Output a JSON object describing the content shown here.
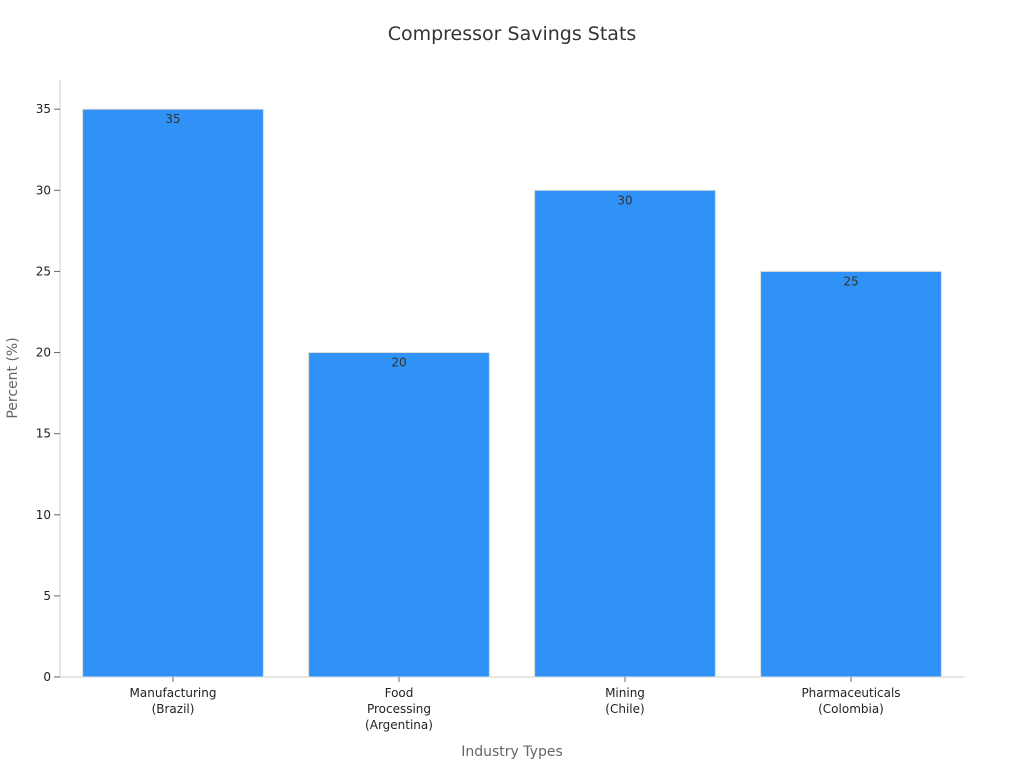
{
  "chart_data": {
    "type": "bar",
    "title": "Compressor Savings Stats",
    "xlabel": "Industry Types",
    "ylabel": "Percent (%)",
    "categories": [
      [
        "Manufacturing",
        "(Brazil)"
      ],
      [
        "Food",
        "Processing",
        "(Argentina)"
      ],
      [
        "Mining",
        "(Chile)"
      ],
      [
        "Pharmaceuticals",
        "(Colombia)"
      ]
    ],
    "values": [
      35,
      20,
      30,
      25
    ],
    "ylim": [
      0,
      36.8
    ],
    "yticks": [
      0,
      5,
      10,
      15,
      20,
      25,
      30,
      35
    ],
    "grid": false,
    "legend": "none",
    "data_labels": true,
    "bar_color": "#3092f6"
  }
}
